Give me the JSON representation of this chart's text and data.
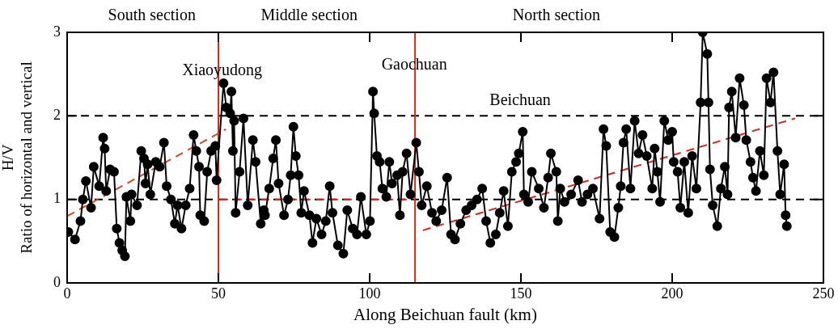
{
  "chart_data": {
    "type": "line",
    "xlabel": "Along Beichuan fault (km)",
    "ylabel": "H/V\nRatio of horizontal and vertical",
    "xlim": [
      0,
      250
    ],
    "xticks": [
      0,
      50,
      100,
      150,
      200,
      250
    ],
    "ylim": [
      0,
      3
    ],
    "yticks": [
      0,
      1,
      2,
      3
    ],
    "grid": false,
    "legend": false,
    "marker": "circle",
    "line_style": "solid",
    "series": [
      {
        "color": "#000000",
        "x": [
          0.4,
          2.6,
          4.4,
          5.2,
          6.2,
          7.9,
          8.8,
          10.6,
          11.9,
          12.4,
          12.9,
          14.2,
          15.5,
          16.4,
          17.3,
          18.2,
          19.1,
          19.6,
          20.9,
          21.3,
          23.1,
          24.5,
          25.4,
          25.9,
          26.6,
          27.5,
          29.3,
          30.6,
          32,
          32.9,
          34.3,
          35.6,
          36.5,
          37.8,
          39.2,
          40.5,
          41.8,
          42.7,
          43.6,
          44,
          45.3,
          46.3,
          47.6,
          49,
          49.4,
          51.7,
          52.6,
          53.9,
          54.3,
          54.8,
          55.2,
          55.7,
          57,
          58.3,
          59.7,
          61.4,
          62.3,
          64,
          65,
          65.4,
          66.8,
          68.1,
          69,
          69.9,
          71.7,
          73,
          73.9,
          74.8,
          75.6,
          76.5,
          77.4,
          78.3,
          80.1,
          81.1,
          82.4,
          84.1,
          85.5,
          86.8,
          87.7,
          89.5,
          91.3,
          92.6,
          94.4,
          95.8,
          97.1,
          98.9,
          100.1,
          101.1,
          101.5,
          102.4,
          103.3,
          104.2,
          105.5,
          106.5,
          107.4,
          109.1,
          110,
          110.9,
          112.2,
          113.5,
          115.4,
          116.3,
          117.2,
          118.9,
          120.6,
          122,
          123.8,
          125.6,
          126.9,
          128.2,
          130,
          131.9,
          133.7,
          135.5,
          137.2,
          138.5,
          139.9,
          141.7,
          143,
          144.3,
          145.7,
          147,
          148.4,
          149.3,
          150.6,
          151,
          152.4,
          153.6,
          155.9,
          157.6,
          159,
          159.9,
          161.7,
          162.2,
          163,
          164.4,
          166.6,
          168.9,
          170.2,
          172,
          173.8,
          176,
          177.3,
          178.2,
          179.5,
          180.9,
          182.2,
          183,
          183.9,
          184.8,
          186.2,
          187.6,
          188.9,
          190.2,
          191.6,
          193.4,
          194.2,
          195.1,
          196,
          197.4,
          198.7,
          200,
          200.5,
          201.8,
          202.7,
          204,
          205.3,
          206.6,
          208,
          209.4,
          210.1,
          211.6,
          212,
          212.5,
          213.4,
          214.9,
          216.1,
          217.4,
          218.3,
          218.8,
          219.7,
          221,
          222.3,
          223.7,
          224.5,
          225.9,
          226.7,
          227.7,
          229,
          230.3,
          231.2,
          232.5,
          233.5,
          234.8,
          235.7,
          237,
          237.5,
          237.9
        ],
        "values": [
          0.61,
          0.52,
          0.74,
          1.0,
          1.22,
          0.9,
          1.39,
          1.16,
          1.74,
          1.61,
          1.1,
          1.36,
          1.33,
          0.65,
          0.48,
          0.39,
          0.32,
          1.03,
          0.74,
          1.06,
          0.93,
          1.58,
          1.49,
          1.19,
          1.42,
          1.06,
          1.45,
          1.39,
          1.68,
          1.16,
          1.0,
          0.71,
          0.93,
          0.65,
          0.93,
          1.13,
          1.77,
          1.58,
          1.39,
          0.81,
          0.74,
          1.33,
          1.58,
          1.64,
          1.23,
          2.39,
          2.1,
          2.03,
          2.29,
          1.58,
          1.94,
          0.84,
          1.33,
          1.97,
          0.93,
          1.71,
          1.45,
          0.71,
          0.87,
          0.81,
          1.13,
          1.49,
          1.71,
          1.19,
          0.81,
          1.0,
          1.29,
          1.87,
          1.52,
          1.29,
          0.84,
          1.1,
          0.81,
          0.48,
          0.77,
          0.58,
          0.74,
          1.16,
          0.84,
          0.45,
          0.35,
          0.87,
          0.65,
          0.58,
          1.03,
          0.58,
          0.74,
          2.29,
          2.03,
          1.52,
          1.45,
          1.13,
          1.03,
          1.45,
          1.19,
          1.29,
          0.81,
          1.33,
          1.55,
          1.06,
          1.68,
          1.33,
          0.93,
          1.16,
          0.84,
          0.74,
          0.87,
          1.26,
          0.58,
          0.52,
          0.71,
          0.87,
          0.93,
          1.0,
          1.13,
          0.74,
          0.48,
          0.58,
          0.84,
          1.1,
          0.68,
          1.33,
          1.45,
          1.55,
          1.81,
          1.06,
          0.97,
          1.33,
          1.13,
          0.9,
          1.26,
          1.55,
          1.33,
          0.74,
          1.13,
          0.97,
          1.06,
          1.23,
          0.97,
          1.06,
          1.13,
          0.77,
          1.84,
          1.64,
          0.61,
          0.55,
          0.9,
          1.16,
          1.68,
          1.84,
          1.13,
          1.94,
          1.55,
          1.77,
          1.52,
          1.13,
          1.61,
          1.33,
          0.97,
          1.94,
          1.71,
          1.81,
          1.45,
          1.33,
          0.9,
          1.45,
          0.84,
          1.52,
          1.13,
          2.16,
          3.0,
          2.74,
          2.16,
          1.36,
          0.93,
          0.68,
          1.13,
          1.39,
          1.06,
          2.1,
          2.29,
          1.74,
          2.45,
          2.13,
          1.71,
          1.45,
          1.26,
          1.1,
          1.58,
          1.29,
          2.45,
          2.16,
          2.52,
          1.58,
          1.06,
          1.42,
          0.81,
          0.68
        ]
      },
      {
        "type": "line",
        "color": "#d9481f",
        "x": [
          0,
          52.5
        ],
        "values": [
          0.8,
          1.84
        ],
        "line_style": "dashed",
        "marker": "none"
      },
      {
        "type": "line",
        "color": "#d9261f",
        "x": [
          50.5,
          112.7
        ],
        "values": [
          1.0,
          1.0
        ],
        "line_style": "dashed",
        "marker": "none"
      },
      {
        "type": "line",
        "color": "#d9261f",
        "x": [
          117.6,
          240.6
        ],
        "values": [
          0.63,
          1.97
        ],
        "line_style": "dashed",
        "marker": "none"
      }
    ],
    "ref_lines": [
      {
        "axis": "y",
        "value": 1,
        "color": "#000000",
        "line_style": "dashed"
      },
      {
        "axis": "y",
        "value": 2,
        "color": "#000000",
        "line_style": "dashed"
      },
      {
        "axis": "x",
        "value": 50,
        "color": "#d42a20",
        "line_style": "solid"
      },
      {
        "axis": "x",
        "value": 115,
        "color": "#d42a20",
        "line_style": "solid"
      }
    ],
    "annotations": [
      "South section",
      "Middle section",
      "North section",
      "Xiaoyudong",
      "Gaochuan",
      "Beichuan"
    ]
  }
}
